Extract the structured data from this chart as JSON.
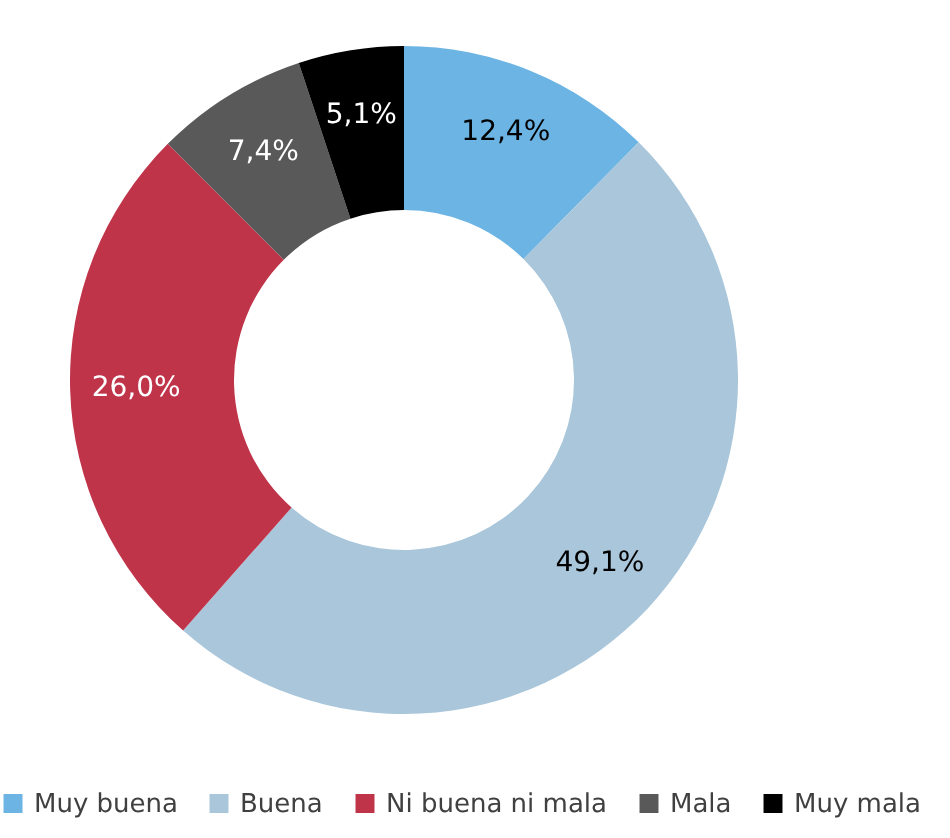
{
  "chart_data": {
    "type": "donut",
    "categories": [
      "Muy buena",
      "Buena",
      "Ni buena ni mala",
      "Mala",
      "Muy mala"
    ],
    "values": [
      12.4,
      49.1,
      26.0,
      7.4,
      5.1
    ],
    "colors": [
      "#6cb4e4",
      "#a9c6da",
      "#c0344a",
      "#595959",
      "#000000"
    ],
    "value_labels": [
      "12,4%",
      "49,1%",
      "26,0%",
      "7,4%",
      "5,1%"
    ],
    "legend": "bottom"
  }
}
